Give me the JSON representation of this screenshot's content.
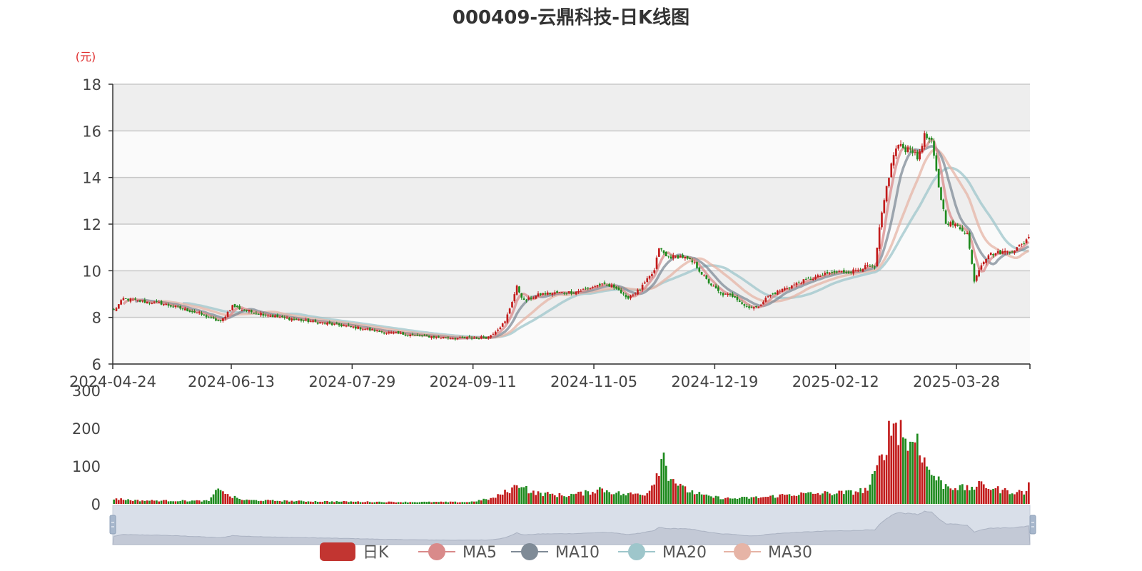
{
  "chart_data": [
    {
      "type": "candlestick",
      "title": "000409-云鼎科技-日K线图",
      "y_unit": "(元)",
      "ylim": [
        6,
        18
      ],
      "yticks": [
        6,
        8,
        10,
        12,
        14,
        16,
        18
      ],
      "xticks": [
        "2024-04-24",
        "2024-06-13",
        "2024-07-29",
        "2024-09-11",
        "2024-11-05",
        "2024-12-19",
        "2025-02-12",
        "2025-03-28"
      ],
      "grid": true,
      "up_color": "#c21b1b",
      "down_color": "#1e8a1e",
      "series": [
        {
          "name": "日K",
          "color": "#c23531"
        },
        {
          "name": "MA5",
          "color": "#d98a8a"
        },
        {
          "name": "MA10",
          "color": "#7f8b97"
        },
        {
          "name": "MA20",
          "color": "#9ec6cb"
        },
        {
          "name": "MA30",
          "color": "#e6b4a6"
        }
      ],
      "close_path": [
        [
          0,
          8.3
        ],
        [
          4,
          8.8
        ],
        [
          10,
          8.7
        ],
        [
          20,
          8.6
        ],
        [
          35,
          8.2
        ],
        [
          45,
          7.8
        ],
        [
          50,
          8.5
        ],
        [
          55,
          8.3
        ],
        [
          70,
          8.0
        ],
        [
          85,
          7.8
        ],
        [
          100,
          7.6
        ],
        [
          115,
          7.35
        ],
        [
          130,
          7.2
        ],
        [
          145,
          7.1
        ],
        [
          158,
          7.15
        ],
        [
          165,
          7.8
        ],
        [
          170,
          9.3
        ],
        [
          173,
          8.7
        ],
        [
          180,
          9.0
        ],
        [
          195,
          9.1
        ],
        [
          205,
          9.4
        ],
        [
          212,
          9.3
        ],
        [
          216,
          8.8
        ],
        [
          222,
          9.2
        ],
        [
          228,
          10.0
        ],
        [
          230,
          11.0
        ],
        [
          233,
          10.6
        ],
        [
          240,
          10.6
        ],
        [
          245,
          10.3
        ],
        [
          250,
          9.6
        ],
        [
          256,
          9.0
        ],
        [
          262,
          8.9
        ],
        [
          266,
          8.5
        ],
        [
          271,
          8.4
        ],
        [
          276,
          8.9
        ],
        [
          282,
          9.2
        ],
        [
          292,
          9.6
        ],
        [
          302,
          9.9
        ],
        [
          312,
          10.0
        ],
        [
          318,
          10.2
        ],
        [
          321,
          10.1
        ],
        [
          323,
          11.8
        ],
        [
          326,
          13.6
        ],
        [
          329,
          15.0
        ],
        [
          331,
          15.4
        ],
        [
          334,
          15.2
        ],
        [
          336,
          15.3
        ],
        [
          339,
          14.8
        ],
        [
          342,
          15.8
        ],
        [
          345,
          15.5
        ],
        [
          348,
          13.6
        ],
        [
          351,
          12.1
        ],
        [
          356,
          11.9
        ],
        [
          360,
          11.6
        ],
        [
          363,
          9.6
        ],
        [
          366,
          10.3
        ],
        [
          369,
          10.7
        ],
        [
          375,
          10.8
        ],
        [
          380,
          10.9
        ],
        [
          384,
          11.2
        ],
        [
          386,
          11.5
        ]
      ],
      "volume_panel": {
        "ylim": [
          0,
          300
        ],
        "yticks": [
          0,
          100,
          200,
          300
        ],
        "volume_path": [
          [
            0,
            14
          ],
          [
            10,
            9
          ],
          [
            40,
            8
          ],
          [
            45,
            45
          ],
          [
            48,
            22
          ],
          [
            55,
            10
          ],
          [
            80,
            7
          ],
          [
            120,
            5
          ],
          [
            150,
            5
          ],
          [
            160,
            15
          ],
          [
            168,
            40
          ],
          [
            172,
            55
          ],
          [
            176,
            30
          ],
          [
            190,
            22
          ],
          [
            200,
            30
          ],
          [
            205,
            40
          ],
          [
            215,
            25
          ],
          [
            225,
            28
          ],
          [
            228,
            65
          ],
          [
            232,
            130
          ],
          [
            234,
            80
          ],
          [
            240,
            40
          ],
          [
            250,
            20
          ],
          [
            260,
            14
          ],
          [
            275,
            18
          ],
          [
            285,
            25
          ],
          [
            300,
            28
          ],
          [
            310,
            30
          ],
          [
            318,
            38
          ],
          [
            322,
            90
          ],
          [
            326,
            170
          ],
          [
            329,
            215
          ],
          [
            332,
            200
          ],
          [
            336,
            150
          ],
          [
            339,
            185
          ],
          [
            342,
            110
          ],
          [
            345,
            80
          ],
          [
            350,
            50
          ],
          [
            360,
            40
          ],
          [
            366,
            50
          ],
          [
            375,
            35
          ],
          [
            385,
            30
          ],
          [
            386,
            62
          ]
        ]
      }
    }
  ],
  "legend": [
    "日K",
    "MA5",
    "MA10",
    "MA20",
    "MA30"
  ]
}
